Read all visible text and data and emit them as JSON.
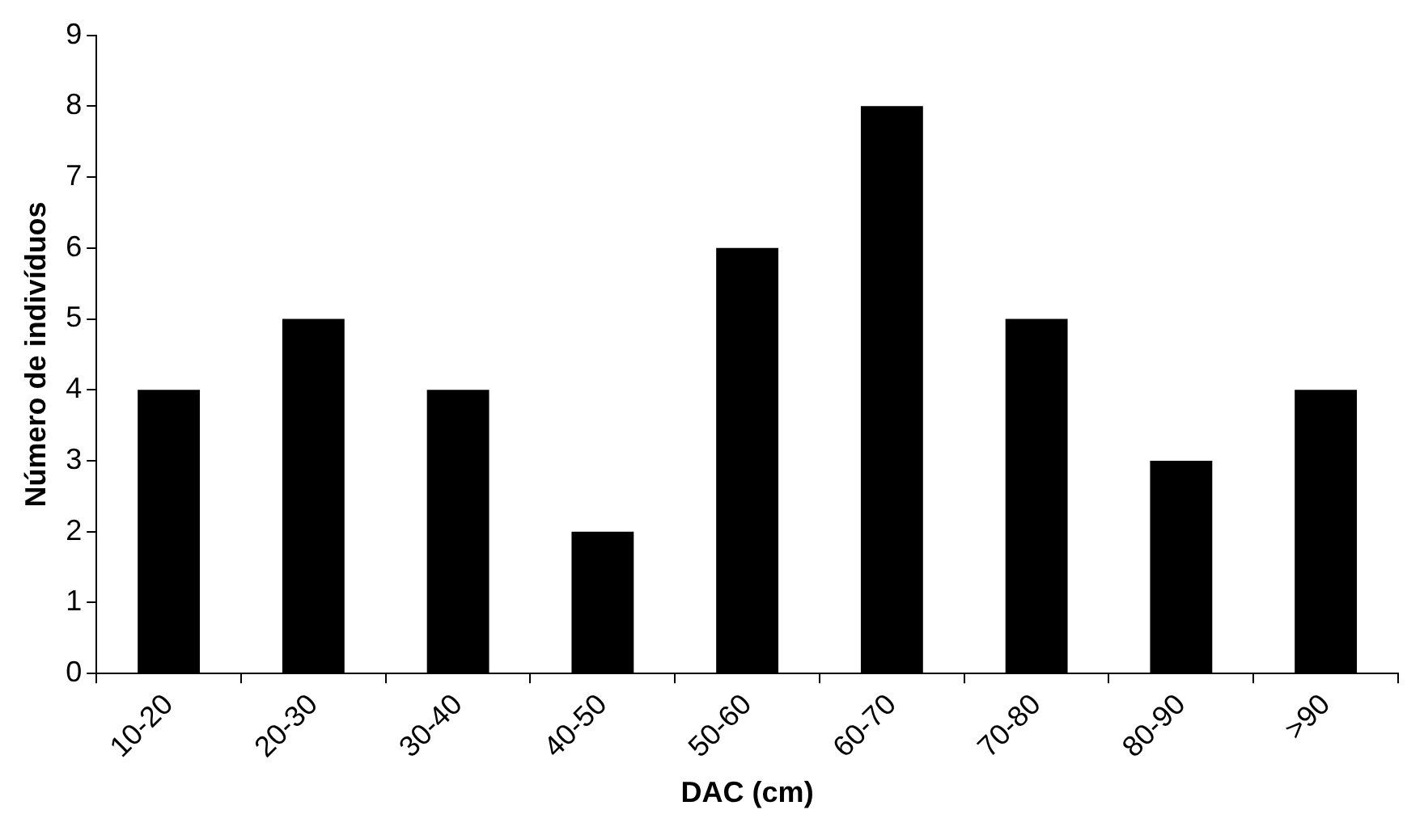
{
  "chart_data": {
    "type": "bar",
    "xlabel": "DAC (cm)",
    "ylabel": "Número de indivíduos",
    "categories": [
      "10-20",
      "20-30",
      "30-40",
      "40-50",
      "50-60",
      "60-70",
      "70-80",
      "80-90",
      ">90"
    ],
    "values": [
      4,
      5,
      4,
      2,
      6,
      8,
      5,
      3,
      4
    ],
    "color": "#000000",
    "ylim": [
      0,
      9
    ],
    "yticks": [
      0,
      1,
      2,
      3,
      4,
      5,
      6,
      7,
      8,
      9
    ],
    "grid": false,
    "legend": false
  }
}
